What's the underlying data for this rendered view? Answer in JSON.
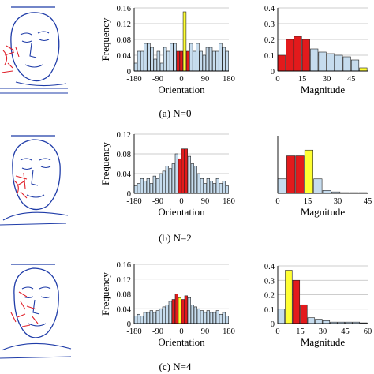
{
  "colors": {
    "bar_blue": "#c6dcee",
    "bar_red": "#e31a1c",
    "bar_yellow": "#ffff33",
    "sketch_blue": "#1f3ca8",
    "sketch_red": "#e0202a"
  },
  "rows": [
    {
      "caption": "(a) N=0",
      "sketch": {
        "face_outline_color": "blue",
        "feature_marks_color": "red"
      }
    },
    {
      "caption": "(b) N=2",
      "sketch": {
        "face_outline_color": "blue",
        "feature_marks_color": "red"
      }
    },
    {
      "caption": "(c) N=4",
      "sketch": {
        "face_outline_color": "blue",
        "feature_marks_color": "red"
      }
    }
  ],
  "chart_data": [
    {
      "type": "bar",
      "panel": "orientation",
      "row": 0,
      "xlabel": "Orientation",
      "ylabel": "Frequency",
      "xlim": [
        -180,
        180
      ],
      "ylim": [
        0,
        0.16
      ],
      "xticks": [
        "-180",
        "-90",
        "0",
        "90",
        "180"
      ],
      "yticks": [
        "0",
        "0.04",
        "0.08",
        "0.12",
        "0.16"
      ],
      "values": [
        0.02,
        0.05,
        0.05,
        0.07,
        0.07,
        0.06,
        0.03,
        0.05,
        0.02,
        0.06,
        0.05,
        0.07,
        0.07,
        0.05,
        0.05,
        0.15,
        0.05,
        0.07,
        0.05,
        0.07,
        0.05,
        0.04,
        0.06,
        0.06,
        0.05,
        0.05,
        0.07,
        0.06,
        0.05
      ],
      "highlight": [
        "blue",
        "blue",
        "blue",
        "blue",
        "blue",
        "blue",
        "blue",
        "blue",
        "blue",
        "blue",
        "blue",
        "blue",
        "blue",
        "red",
        "red",
        "yellow",
        "red",
        "blue",
        "blue",
        "blue",
        "blue",
        "blue",
        "blue",
        "blue",
        "blue",
        "blue",
        "blue",
        "blue",
        "blue"
      ]
    },
    {
      "type": "bar",
      "panel": "magnitude",
      "row": 0,
      "xlabel": "Magnitude",
      "ylabel": "",
      "xlim": [
        0,
        55
      ],
      "ylim": [
        0,
        0.4
      ],
      "xticks": [
        "0",
        "15",
        "30",
        "45"
      ],
      "yticks": [
        "0",
        "0.1",
        "0.2",
        "0.3",
        "0.4"
      ],
      "values": [
        0.1,
        0.2,
        0.22,
        0.2,
        0.14,
        0.12,
        0.11,
        0.1,
        0.09,
        0.07,
        0.02
      ],
      "highlight": [
        "red",
        "red",
        "red",
        "red",
        "blue",
        "blue",
        "blue",
        "blue",
        "blue",
        "blue",
        "yellow"
      ]
    },
    {
      "type": "bar",
      "panel": "orientation",
      "row": 1,
      "xlabel": "Orientation",
      "ylabel": "Frequency",
      "xlim": [
        -180,
        180
      ],
      "ylim": [
        0,
        0.12
      ],
      "xticks": [
        "-180",
        "-90",
        "0",
        "90",
        "180"
      ],
      "yticks": [
        "0",
        "0.04",
        "0.08",
        "0.12"
      ],
      "values": [
        0.015,
        0.02,
        0.03,
        0.025,
        0.03,
        0.02,
        0.035,
        0.03,
        0.04,
        0.045,
        0.055,
        0.05,
        0.06,
        0.08,
        0.07,
        0.09,
        0.09,
        0.075,
        0.06,
        0.055,
        0.04,
        0.03,
        0.02,
        0.03,
        0.025,
        0.02,
        0.03,
        0.02,
        0.025,
        0.015
      ],
      "highlight": [
        "blue",
        "blue",
        "blue",
        "blue",
        "blue",
        "blue",
        "blue",
        "blue",
        "blue",
        "blue",
        "blue",
        "blue",
        "blue",
        "blue",
        "red",
        "red",
        "red",
        "blue",
        "blue",
        "blue",
        "blue",
        "blue",
        "blue",
        "blue",
        "blue",
        "blue",
        "blue",
        "blue",
        "blue",
        "blue"
      ]
    },
    {
      "type": "bar",
      "panel": "magnitude",
      "row": 1,
      "xlabel": "Magnitude",
      "ylabel": "",
      "xlim": [
        0,
        45
      ],
      "ylim": [
        0,
        0.4
      ],
      "xticks": [
        "0",
        "15",
        "30",
        "45"
      ],
      "yticks": [],
      "values": [
        0.1,
        0.26,
        0.26,
        0.3,
        0.1,
        0.02,
        0.01,
        0.005,
        0.005,
        0.005
      ],
      "highlight": [
        "blue",
        "red",
        "red",
        "yellow",
        "blue",
        "blue",
        "blue",
        "blue",
        "blue",
        "blue"
      ]
    },
    {
      "type": "bar",
      "panel": "orientation",
      "row": 2,
      "xlabel": "Orientation",
      "ylabel": "Frequency",
      "xlim": [
        -180,
        180
      ],
      "ylim": [
        0,
        0.16
      ],
      "xticks": [
        "-180",
        "-90",
        "0",
        "90",
        "180"
      ],
      "yticks": [
        "0",
        "0.04",
        "0.08",
        "0.12",
        "0.16"
      ],
      "values": [
        0.02,
        0.025,
        0.02,
        0.03,
        0.03,
        0.035,
        0.03,
        0.035,
        0.04,
        0.045,
        0.05,
        0.06,
        0.065,
        0.08,
        0.07,
        0.065,
        0.075,
        0.07,
        0.05,
        0.045,
        0.04,
        0.035,
        0.03,
        0.035,
        0.03,
        0.03,
        0.035,
        0.025,
        0.03,
        0.02
      ],
      "highlight": [
        "blue",
        "blue",
        "blue",
        "blue",
        "blue",
        "blue",
        "blue",
        "blue",
        "blue",
        "blue",
        "blue",
        "blue",
        "red",
        "red",
        "yellow",
        "red",
        "red",
        "blue",
        "blue",
        "blue",
        "blue",
        "blue",
        "blue",
        "blue",
        "blue",
        "blue",
        "blue",
        "blue",
        "blue",
        "blue"
      ]
    },
    {
      "type": "bar",
      "panel": "magnitude",
      "row": 2,
      "xlabel": "Magnitude",
      "ylabel": "",
      "xlim": [
        0,
        60
      ],
      "ylim": [
        0,
        0.4
      ],
      "xticks": [
        "0",
        "15",
        "30",
        "45",
        "60"
      ],
      "yticks": [
        "0",
        "0.1",
        "0.2",
        "0.3",
        "0.4"
      ],
      "values": [
        0.1,
        0.37,
        0.3,
        0.13,
        0.04,
        0.03,
        0.02,
        0.01,
        0.01,
        0.01,
        0.01,
        0.005
      ],
      "highlight": [
        "blue",
        "yellow",
        "red",
        "red",
        "blue",
        "blue",
        "blue",
        "blue",
        "blue",
        "blue",
        "blue",
        "blue"
      ]
    }
  ]
}
